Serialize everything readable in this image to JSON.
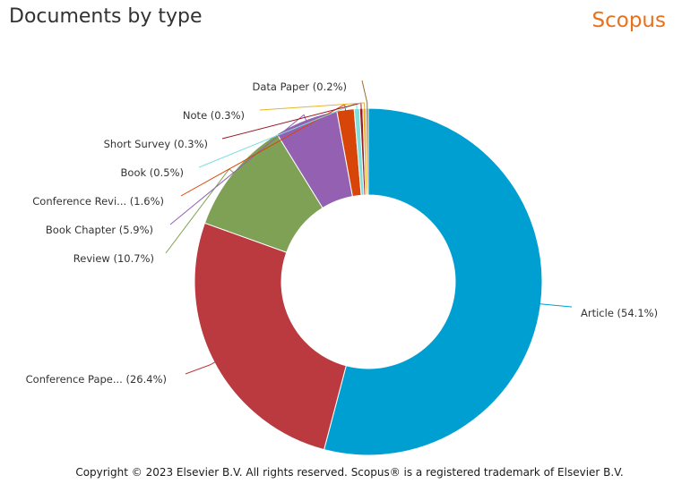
{
  "header": {
    "title": "Documents by type",
    "brand": "Scopus"
  },
  "footer": {
    "copyright": "Copyright © 2023 Elsevier B.V. All rights reserved. Scopus® is a registered trademark of Elsevier B.V."
  },
  "chart_data": {
    "type": "pie",
    "variant": "donut",
    "title": "Documents by type",
    "legend": "none (labels with leader lines)",
    "slices": [
      {
        "label": "Article (54.1%)",
        "value": 54.1,
        "color": "#009fd1"
      },
      {
        "label": "Conference Pape... (26.4%)",
        "value": 26.4,
        "color": "#ba3a40"
      },
      {
        "label": "Review (10.7%)",
        "value": 10.7,
        "color": "#7ea155"
      },
      {
        "label": "Book Chapter (5.9%)",
        "value": 5.9,
        "color": "#9461b2"
      },
      {
        "label": "Conference Revi... (1.6%)",
        "value": 1.6,
        "color": "#d84508"
      },
      {
        "label": "Book (0.5%)",
        "value": 0.5,
        "color": "#7fdfdd"
      },
      {
        "label": "Short Survey (0.3%)",
        "value": 0.3,
        "color": "#9c1a28"
      },
      {
        "label": "Note (0.3%)",
        "value": 0.3,
        "color": "#e8b62a"
      },
      {
        "label": "Data Paper (0.2%)",
        "value": 0.2,
        "color": "#9a6a3a"
      }
    ]
  }
}
